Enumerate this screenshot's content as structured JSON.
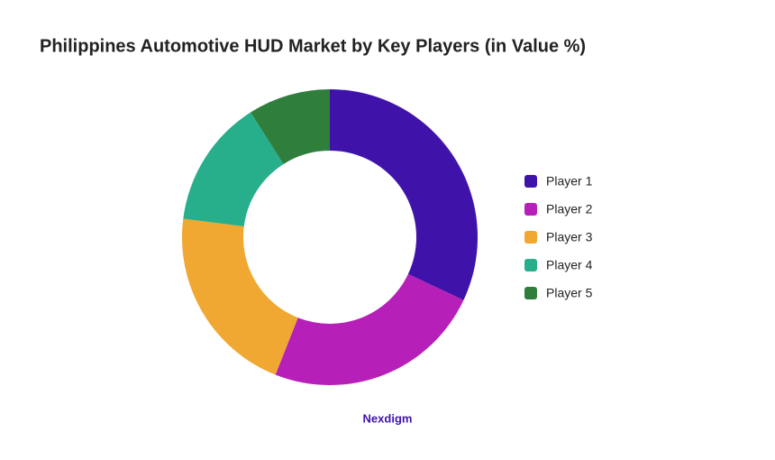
{
  "chart_data": {
    "type": "donut",
    "title": "Philippines Automotive HUD Market by Key Players (in Value %)",
    "categories": [
      "Player 1",
      "Player 2",
      "Player 3",
      "Player 4",
      "Player 5"
    ],
    "values": [
      32,
      24,
      21,
      14,
      9
    ],
    "colors": [
      "#3f13a9",
      "#b71fb9",
      "#f0a832",
      "#27ae8b",
      "#2f7e3c"
    ],
    "footer": "Nexdigm"
  }
}
